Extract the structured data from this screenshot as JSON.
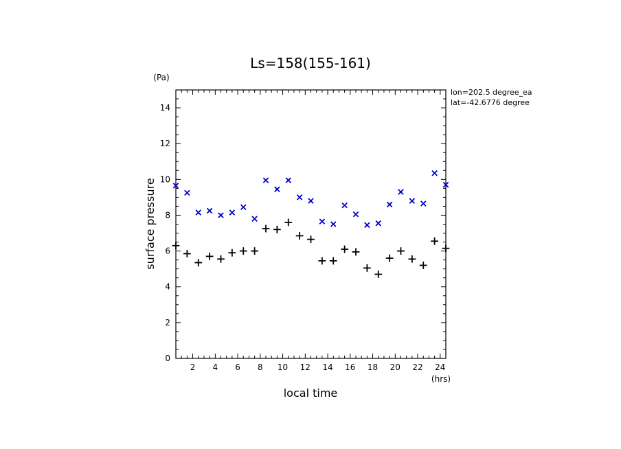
{
  "chart_data": {
    "type": "scatter",
    "title": "Ls=158(155-161)",
    "xlabel": "local time",
    "ylabel": "surface pressure",
    "xunit": "(hrs)",
    "yunit": "(Pa)",
    "annotations": [
      "lon=202.5 degree_ea",
      "lat=-42.6776 degree"
    ],
    "xlim": [
      0.5,
      24.5
    ],
    "ylim": [
      0,
      15
    ],
    "xticks": [
      2,
      4,
      6,
      8,
      10,
      12,
      14,
      16,
      18,
      20,
      22,
      24
    ],
    "yticks": [
      0,
      2,
      4,
      6,
      8,
      10,
      12,
      14
    ],
    "grid": false,
    "series": [
      {
        "marker": "x",
        "color": "#0000cc",
        "x": [
          0.5,
          1.5,
          2.5,
          3.5,
          4.5,
          5.5,
          6.5,
          7.5,
          8.5,
          9.5,
          10.5,
          11.5,
          12.5,
          13.5,
          14.5,
          15.5,
          16.5,
          17.5,
          18.5,
          19.5,
          20.5,
          21.5,
          22.5,
          23.5,
          24.5
        ],
        "y": [
          9.65,
          9.25,
          8.15,
          8.25,
          8.0,
          8.15,
          8.45,
          7.8,
          9.95,
          9.45,
          9.95,
          9.0,
          8.8,
          7.65,
          7.5,
          8.55,
          8.05,
          7.45,
          7.55,
          8.6,
          9.3,
          8.8,
          8.65,
          10.35,
          9.7
        ]
      },
      {
        "marker": "+",
        "color": "#000000",
        "x": [
          0.5,
          1.5,
          2.5,
          3.5,
          4.5,
          5.5,
          6.5,
          7.5,
          8.5,
          9.5,
          10.5,
          11.5,
          12.5,
          13.5,
          14.5,
          15.5,
          16.5,
          17.5,
          18.5,
          19.5,
          20.5,
          21.5,
          22.5,
          23.5,
          24.5
        ],
        "y": [
          6.3,
          5.85,
          5.35,
          5.7,
          5.55,
          5.9,
          6.0,
          6.0,
          7.25,
          7.2,
          7.6,
          6.85,
          6.65,
          5.45,
          5.45,
          6.1,
          5.95,
          5.05,
          4.7,
          5.6,
          6.0,
          5.55,
          5.2,
          6.55,
          6.15
        ]
      }
    ]
  }
}
